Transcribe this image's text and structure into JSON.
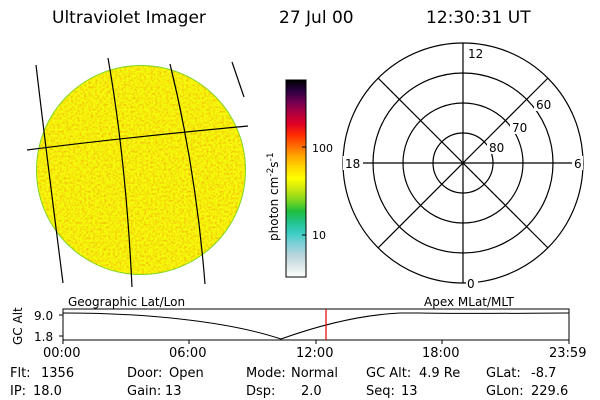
{
  "header": {
    "instrument": "Ultraviolet Imager",
    "date": "27 Jul 00",
    "time": "12:30:31 UT"
  },
  "colorbar": {
    "label": "photon cm",
    "exp1": "-2",
    "mid": "s",
    "exp2": "-1",
    "ticks": [
      "100",
      "10"
    ],
    "colors": [
      "#ffffff",
      "#dbe8e8",
      "#b8d4dc",
      "#7fd0d8",
      "#3ccdc4",
      "#22c38e",
      "#1fbe3e",
      "#7fd61e",
      "#c8e60f",
      "#ffff00",
      "#ffd800",
      "#ffaa00",
      "#ff6a00",
      "#ff2a00",
      "#e00024",
      "#b00040",
      "#700050",
      "#2b0040",
      "#000000"
    ]
  },
  "dial": {
    "labels": {
      "top": "12",
      "left": "18",
      "right": "6",
      "bottom": "0"
    },
    "rings": [
      "60",
      "70",
      "80"
    ]
  },
  "plot": {
    "left_label": "Geographic Lat/Lon",
    "right_label": "Apex MLat/MLT",
    "y_axis_label": "GC Alt",
    "y_ticks": [
      "9.0",
      "1.8"
    ],
    "x_ticks": [
      "00:00",
      "06:00",
      "12:00",
      "18:00",
      "23:59"
    ],
    "marker_color": "#e00000"
  },
  "status": {
    "row1": [
      {
        "label": "Flt:",
        "value": "1356"
      },
      {
        "label": "Door:",
        "value": "Open"
      },
      {
        "label": "Mode:",
        "value": "Normal"
      },
      {
        "label": "GC Alt:",
        "value": "4.9 Re"
      },
      {
        "label": "GLat:",
        "value": "-8.7"
      }
    ],
    "row2": [
      {
        "label": "IP:",
        "value": "18.0"
      },
      {
        "label": "Gain:",
        "value": "13"
      },
      {
        "label": "Dsp:",
        "value": "2.0"
      },
      {
        "label": "Seq:",
        "value": "13"
      },
      {
        "label": "GLon:",
        "value": "229.6"
      }
    ]
  }
}
